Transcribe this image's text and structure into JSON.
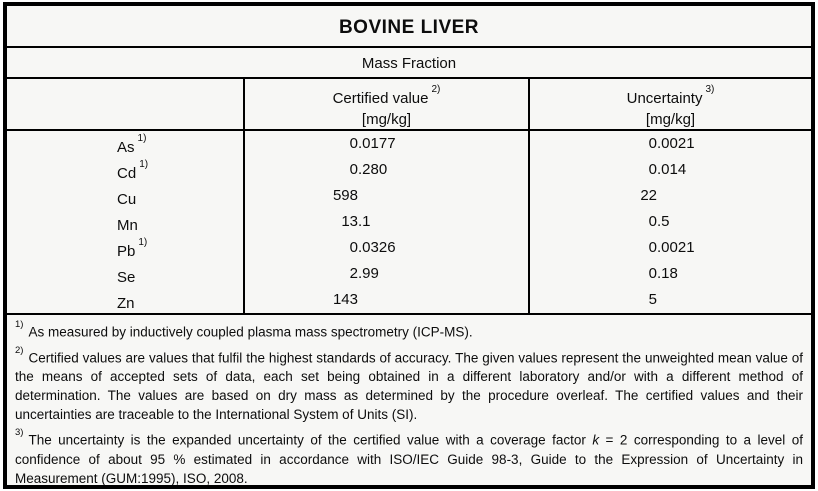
{
  "header": {
    "title": "BOVINE LIVER",
    "subtitle": "Mass Fraction"
  },
  "columns": [
    {
      "label": "Certified value",
      "marker": "2)",
      "unit": "[mg/kg]"
    },
    {
      "label": "Uncertainty",
      "marker": "3)",
      "unit": "[mg/kg]"
    }
  ],
  "table": {
    "rows": [
      {
        "element": "As",
        "note": "1)",
        "certified": "0.0177",
        "uncertainty": "0.0021"
      },
      {
        "element": "Cd",
        "note": "1)",
        "certified": "0.280",
        "uncertainty": "0.014"
      },
      {
        "element": "Cu",
        "note": "",
        "certified": "598",
        "uncertainty": "22"
      },
      {
        "element": "Mn",
        "note": "",
        "certified": "13.1",
        "uncertainty": "0.5"
      },
      {
        "element": "Pb",
        "note": "1)",
        "certified": "0.0326",
        "uncertainty": "0.0021"
      },
      {
        "element": "Se",
        "note": "",
        "certified": "2.99",
        "uncertainty": "0.18"
      },
      {
        "element": "Zn",
        "note": "",
        "certified": "143",
        "uncertainty": "5"
      }
    ]
  },
  "footnotes": [
    {
      "marker": "1)",
      "text": "As measured by inductively coupled plasma mass spectrometry (ICP-MS)."
    },
    {
      "marker": "2)",
      "text": "Certified values are values that fulfil the highest standards of accuracy. The given values represent the unweighted mean value of the means of accepted sets of data, each set being obtained in a different laboratory and/or with a different method of determination. The values are based on dry mass as determined by the procedure overleaf. The certified values and their uncertainties are traceable to the International System of Units (SI)."
    },
    {
      "marker": "3)",
      "pre": "The uncertainty is the expanded uncertainty of the certified value with a coverage factor ",
      "k": "k",
      "post": " = 2 corresponding to a level of confidence of about 95 % estimated in accordance with ISO/IEC Guide 98-3, Guide to the Expression of Uncertainty in Measurement (GUM:1995), ISO, 2008."
    }
  ],
  "colors": {
    "border": "#000000",
    "background": "#f7f7f5",
    "text": "#0d0d0d"
  }
}
